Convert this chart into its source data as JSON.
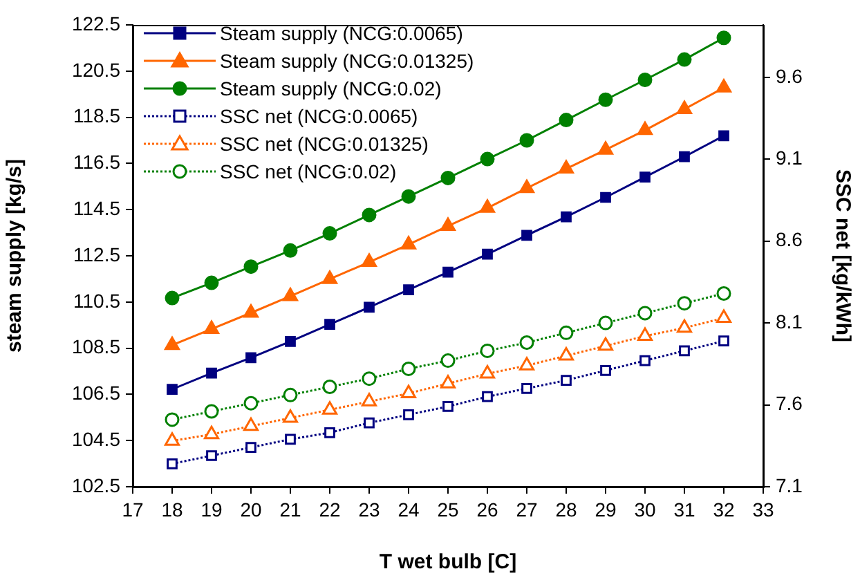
{
  "chart_data": {
    "type": "line",
    "xlabel": "T wet bulb [C]",
    "ylabel": "steam supply [kg/s]",
    "y2label": "SSC net [kg/kWh]",
    "x": [
      18,
      19,
      20,
      21,
      22,
      23,
      24,
      25,
      26,
      27,
      28,
      29,
      30,
      31,
      32
    ],
    "xlim": [
      17,
      33
    ],
    "xticks": [
      17,
      18,
      19,
      20,
      21,
      22,
      23,
      24,
      25,
      26,
      27,
      28,
      29,
      30,
      31,
      32,
      33
    ],
    "ylim": [
      102.5,
      122.5
    ],
    "yticks": [
      102.5,
      104.5,
      106.5,
      108.5,
      110.5,
      112.5,
      114.5,
      116.5,
      118.5,
      120.5,
      122.5
    ],
    "y2lim": [
      7.1,
      9.92
    ],
    "y2ticks": [
      7.1,
      7.6,
      8.1,
      8.6,
      9.1,
      9.6
    ],
    "grid": false,
    "legend": "top left",
    "series": [
      {
        "name": "Steam supply (NCG:0.0065)",
        "color": "#000080",
        "marker": "square",
        "line_style": "solid",
        "values": [
          106.72,
          107.42,
          108.09,
          108.79,
          109.53,
          110.27,
          111.03,
          111.79,
          112.57,
          113.39,
          114.19,
          115.03,
          115.91,
          116.79,
          117.7
        ]
      },
      {
        "name": "Steam supply (NCG:0.01325)",
        "color": "#ff6600",
        "marker": "triangle",
        "line_style": "solid",
        "values": [
          108.63,
          109.33,
          110.03,
          110.75,
          111.49,
          112.23,
          112.99,
          113.79,
          114.57,
          115.43,
          116.27,
          117.09,
          117.94,
          118.85,
          119.78
        ]
      },
      {
        "name": "Steam supply (NCG:0.02)",
        "color": "#008000",
        "marker": "circle",
        "line_style": "solid",
        "values": [
          110.67,
          111.33,
          112.03,
          112.73,
          113.47,
          114.27,
          115.07,
          115.87,
          116.69,
          117.5,
          118.38,
          119.26,
          120.12,
          121.0,
          121.94
        ]
      },
      {
        "name": "SSC net (NCG:0.0065)",
        "color": "#000080",
        "marker": "square",
        "line_style": "dotted",
        "axis": "y2",
        "values": [
          7.24,
          7.29,
          7.34,
          7.39,
          7.43,
          7.49,
          7.54,
          7.59,
          7.65,
          7.7,
          7.75,
          7.81,
          7.87,
          7.93,
          7.99
        ]
      },
      {
        "name": "SSC net (NCG:0.01325)",
        "color": "#ff6600",
        "marker": "triangle",
        "line_style": "dotted",
        "axis": "y2",
        "values": [
          7.38,
          7.42,
          7.47,
          7.52,
          7.57,
          7.62,
          7.67,
          7.73,
          7.79,
          7.84,
          7.9,
          7.96,
          8.02,
          8.07,
          8.13
        ]
      },
      {
        "name": "SSC net (NCG:0.02)",
        "color": "#008000",
        "marker": "circle",
        "line_style": "dotted",
        "axis": "y2",
        "values": [
          7.51,
          7.56,
          7.61,
          7.66,
          7.71,
          7.76,
          7.82,
          7.87,
          7.93,
          7.98,
          8.04,
          8.1,
          8.16,
          8.22,
          8.28
        ]
      }
    ]
  }
}
